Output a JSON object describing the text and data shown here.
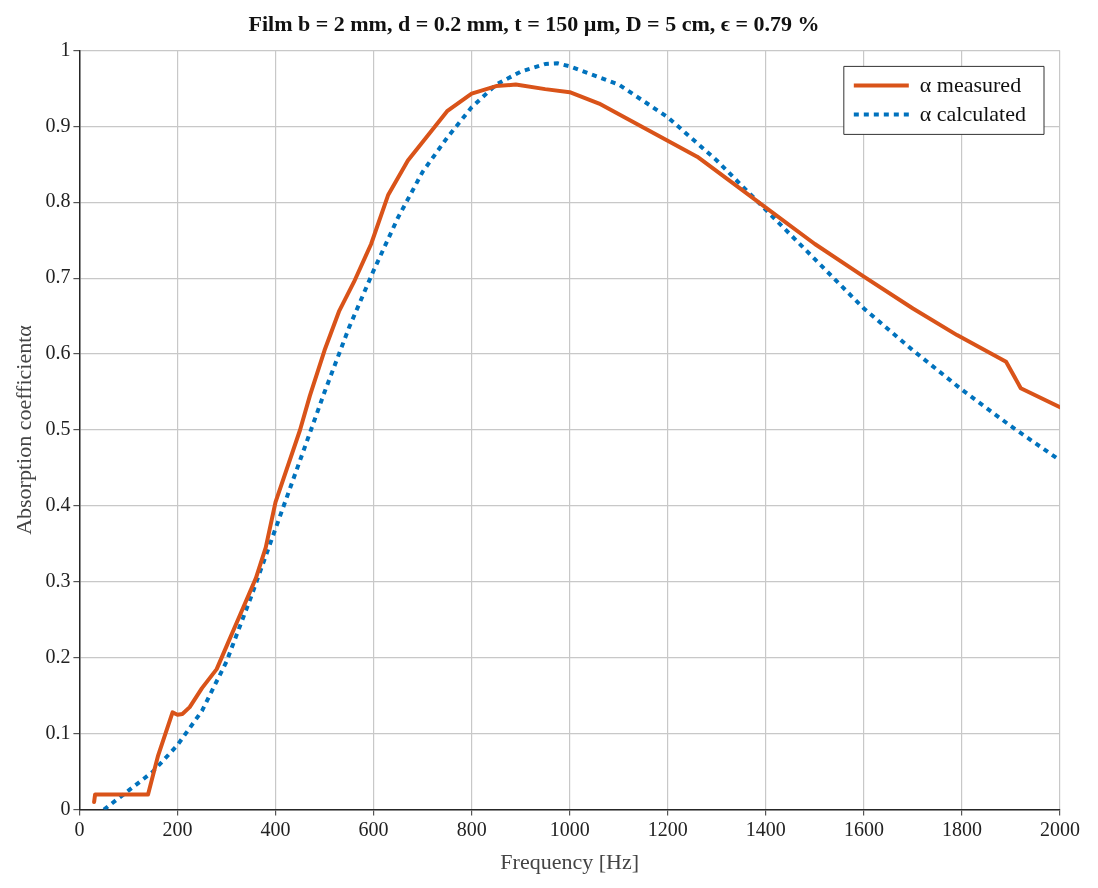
{
  "chart_data": {
    "type": "line",
    "title": "Film b = 2 mm, d = 0.2 mm, t = 150 µm, D = 5 cm, ϵ = 0.79 %",
    "xlabel": "Frequency [Hz]",
    "ylabel": "Absorption coefficientα",
    "xlim": [
      0,
      2000
    ],
    "xticks": [
      0,
      200,
      400,
      600,
      800,
      1000,
      1200,
      1400,
      1600,
      1800,
      2000
    ],
    "ylim": [
      0,
      1
    ],
    "yticks": [
      0,
      0.1,
      0.2,
      0.3,
      0.4,
      0.5,
      0.6,
      0.7,
      0.8,
      0.9,
      1
    ],
    "grid": true,
    "legend": "top right",
    "marker": "none",
    "series": [
      {
        "name": "α measured",
        "color": "#d95319",
        "line_style": "solid",
        "x": [
          30,
          32,
          40,
          140,
          160,
          190,
          200,
          210,
          225,
          250,
          280,
          300,
          330,
          360,
          380,
          400,
          450,
          470,
          500,
          530,
          560,
          595,
          630,
          670,
          750,
          800,
          850,
          890,
          950,
          1000,
          1060,
          1260,
          1400,
          1500,
          1600,
          1700,
          1790,
          1890,
          1920,
          2000
        ],
        "values": [
          0.01,
          0.02,
          0.02,
          0.02,
          0.07,
          0.128,
          0.125,
          0.126,
          0.135,
          0.16,
          0.185,
          0.215,
          0.26,
          0.305,
          0.345,
          0.405,
          0.5,
          0.545,
          0.605,
          0.657,
          0.695,
          0.745,
          0.81,
          0.855,
          0.92,
          0.943,
          0.953,
          0.955,
          0.949,
          0.945,
          0.93,
          0.86,
          0.793,
          0.745,
          0.702,
          0.66,
          0.625,
          0.59,
          0.555,
          0.53
        ]
      },
      {
        "name": "α calculated",
        "color": "#0072bd",
        "line_style": "dotted",
        "x": [
          50,
          100,
          150,
          200,
          250,
          300,
          350,
          400,
          450,
          500,
          550,
          600,
          650,
          700,
          750,
          800,
          850,
          900,
          950,
          975,
          1000,
          1100,
          1200,
          1300,
          1400,
          1500,
          1600,
          1700,
          1800,
          1900,
          2000
        ],
        "values": [
          0,
          0.025,
          0.05,
          0.085,
          0.13,
          0.195,
          0.28,
          0.37,
          0.46,
          0.55,
          0.635,
          0.71,
          0.78,
          0.84,
          0.885,
          0.925,
          0.955,
          0.972,
          0.982,
          0.983,
          0.979,
          0.955,
          0.912,
          0.855,
          0.79,
          0.725,
          0.66,
          0.605,
          0.553,
          0.505,
          0.46
        ]
      }
    ]
  }
}
